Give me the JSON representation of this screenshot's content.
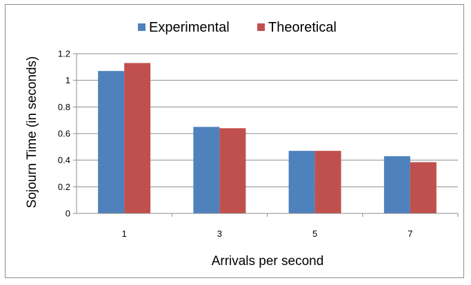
{
  "chart_data": {
    "type": "bar",
    "categories": [
      "1",
      "3",
      "5",
      "7"
    ],
    "series": [
      {
        "name": "Experimental",
        "values": [
          1.07,
          0.65,
          0.47,
          0.43
        ],
        "color": "#4F81BD"
      },
      {
        "name": "Theoretical",
        "values": [
          1.13,
          0.64,
          0.47,
          0.385
        ],
        "color": "#C0504D"
      }
    ],
    "title": "",
    "xlabel": "Arrivals per second",
    "ylabel": "Sojourn Time (in seconds)",
    "ylim": [
      0,
      1.2
    ],
    "yticks": [
      "0",
      "0.2",
      "0.4",
      "0.6",
      "0.8",
      "1",
      "1.2"
    ],
    "grid": true,
    "legend": "top"
  }
}
